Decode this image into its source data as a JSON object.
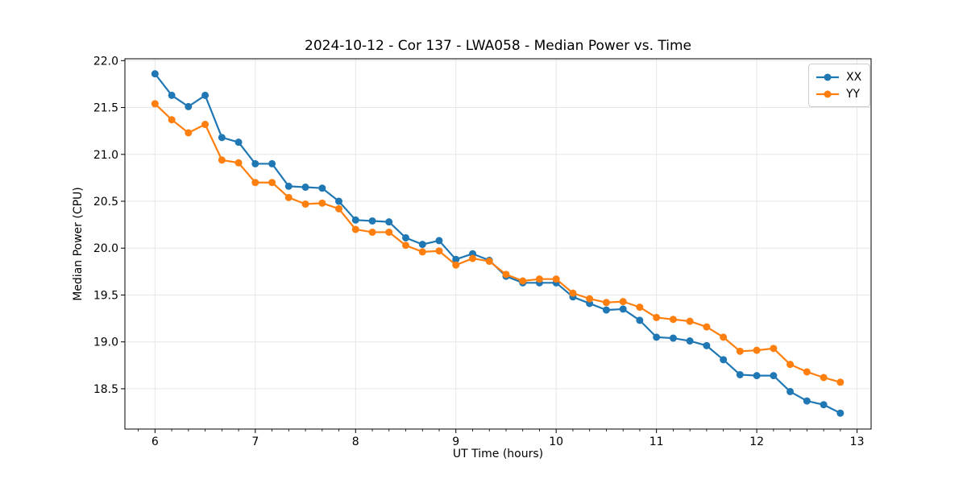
{
  "chart_data": {
    "type": "line",
    "title": "2024-10-12 - Cor 137 - LWA058 - Median Power vs. Time",
    "xlabel": "UT Time (hours)",
    "ylabel": "Median Power (CPU)",
    "xlim": [
      5.7,
      13.14
    ],
    "ylim": [
      18.07,
      22.02
    ],
    "xticks": [
      6,
      7,
      8,
      9,
      10,
      11,
      12,
      13
    ],
    "yticks": [
      18.5,
      19.0,
      19.5,
      20.0,
      20.5,
      21.0,
      21.5,
      22.0
    ],
    "x_minor_step": 0.16667,
    "grid": true,
    "legend_position": "upper right",
    "marker": "circle",
    "x": [
      6.0,
      6.167,
      6.333,
      6.5,
      6.667,
      6.833,
      7.0,
      7.167,
      7.333,
      7.5,
      7.667,
      7.833,
      8.0,
      8.167,
      8.333,
      8.5,
      8.667,
      8.833,
      9.0,
      9.167,
      9.333,
      9.5,
      9.667,
      9.833,
      10.0,
      10.167,
      10.333,
      10.5,
      10.667,
      10.833,
      11.0,
      11.167,
      11.333,
      11.5,
      11.667,
      11.833,
      12.0,
      12.167,
      12.333,
      12.5,
      12.667,
      12.833
    ],
    "series": [
      {
        "name": "XX",
        "color": "#1f77b4",
        "values": [
          21.86,
          21.63,
          21.51,
          21.63,
          21.18,
          21.13,
          20.9,
          20.9,
          20.66,
          20.65,
          20.64,
          20.5,
          20.3,
          20.29,
          20.28,
          20.11,
          20.04,
          20.08,
          19.88,
          19.94,
          19.87,
          19.7,
          19.63,
          19.63,
          19.63,
          19.48,
          19.41,
          19.34,
          19.35,
          19.23,
          19.05,
          19.04,
          19.01,
          18.96,
          18.81,
          18.65,
          18.64,
          18.64,
          18.47,
          18.37,
          18.33,
          18.24
        ]
      },
      {
        "name": "YY",
        "color": "#ff7f0e",
        "values": [
          21.54,
          21.37,
          21.23,
          21.32,
          20.94,
          20.91,
          20.7,
          20.7,
          20.54,
          20.47,
          20.48,
          20.42,
          20.2,
          20.17,
          20.17,
          20.03,
          19.96,
          19.97,
          19.82,
          19.89,
          19.86,
          19.72,
          19.65,
          19.67,
          19.67,
          19.52,
          19.46,
          19.42,
          19.43,
          19.37,
          19.26,
          19.24,
          19.22,
          19.16,
          19.05,
          18.9,
          18.91,
          18.93,
          18.76,
          18.68,
          18.62,
          18.57
        ]
      }
    ],
    "colors": {
      "grid": "#e6e6e6",
      "spine": "#000000",
      "tick_label": "#000000"
    }
  }
}
